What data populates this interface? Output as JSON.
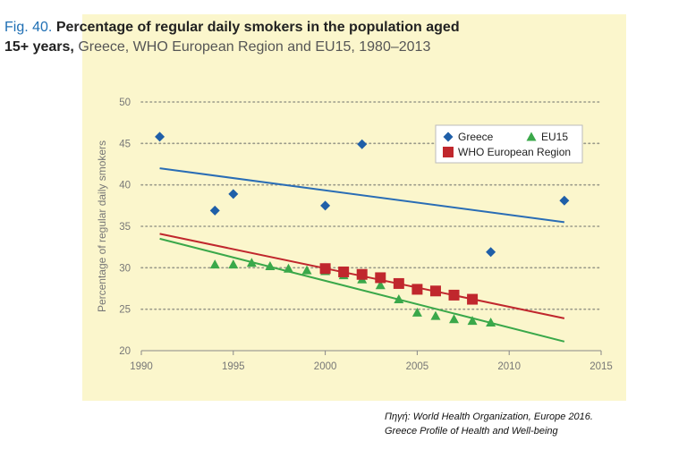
{
  "title": {
    "fig_label": "Fig. 40.",
    "main": "Percentage of regular daily smokers in the population aged",
    "main2": "15+ years,",
    "sub": "Greece, WHO European Region and EU15, 1980–2013"
  },
  "caption": {
    "line1": "Πηγή: World Health Organization, Europe 2016.",
    "line2": "Greece Profile of Health and Well-being"
  },
  "colors": {
    "greece": "#1f5fa8",
    "who": "#c0272d",
    "eu15": "#3aa84a",
    "greece_trend": "#2a6db5",
    "who_trend": "#c0272d",
    "eu15_trend": "#3aa84a"
  },
  "chart_data": {
    "type": "scatter",
    "title": "Percentage of regular daily smokers in the population aged 15+ years",
    "xlabel": "",
    "ylabel": "Percentage of regular daily smokers",
    "xlim": [
      1990,
      2015
    ],
    "ylim": [
      20,
      50
    ],
    "xticks": [
      1990,
      1995,
      2000,
      2005,
      2010,
      2015
    ],
    "yticks": [
      20,
      25,
      30,
      35,
      40,
      45,
      50
    ],
    "grid": "horizontal dotted",
    "legend_position": "top-right",
    "series": [
      {
        "name": "Greece",
        "marker": "diamond",
        "color_key": "greece",
        "points": [
          [
            1991,
            45.8
          ],
          [
            1994,
            36.9
          ],
          [
            1995,
            38.9
          ],
          [
            2000,
            37.5
          ],
          [
            2002,
            44.9
          ],
          [
            2009,
            31.9
          ],
          [
            2013,
            38.1
          ]
        ],
        "trend": [
          [
            1991,
            42.0
          ],
          [
            2013,
            35.5
          ]
        ]
      },
      {
        "name": "EU15",
        "marker": "triangle",
        "color_key": "eu15",
        "points": [
          [
            1994,
            30.4
          ],
          [
            1995,
            30.4
          ],
          [
            1996,
            30.6
          ],
          [
            1997,
            30.2
          ],
          [
            1998,
            29.9
          ],
          [
            1999,
            29.7
          ],
          [
            2000,
            29.6
          ],
          [
            2001,
            29.1
          ],
          [
            2002,
            28.6
          ],
          [
            2003,
            27.9
          ],
          [
            2004,
            26.2
          ],
          [
            2005,
            24.6
          ],
          [
            2006,
            24.2
          ],
          [
            2007,
            23.8
          ],
          [
            2008,
            23.6
          ],
          [
            2009,
            23.4
          ]
        ],
        "trend": [
          [
            1991,
            33.5
          ],
          [
            2013,
            21.1
          ]
        ]
      },
      {
        "name": "WHO European Region",
        "marker": "square",
        "color_key": "who",
        "points": [
          [
            2000,
            29.9
          ],
          [
            2001,
            29.5
          ],
          [
            2002,
            29.2
          ],
          [
            2003,
            28.8
          ],
          [
            2004,
            28.1
          ],
          [
            2005,
            27.4
          ],
          [
            2006,
            27.2
          ],
          [
            2007,
            26.7
          ],
          [
            2008,
            26.2
          ]
        ],
        "trend": [
          [
            1991,
            34.1
          ],
          [
            2013,
            23.9
          ]
        ]
      }
    ]
  }
}
